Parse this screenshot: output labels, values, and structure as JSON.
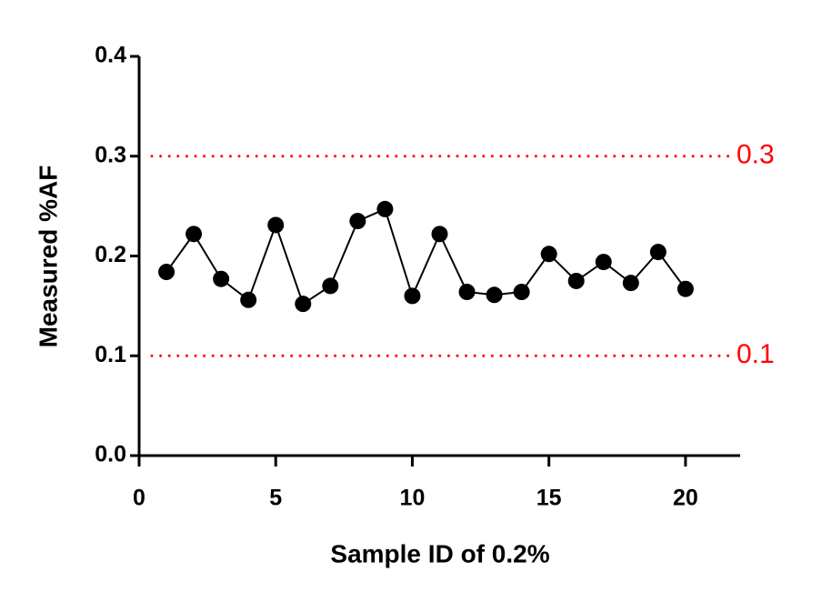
{
  "chart_data": {
    "type": "line",
    "x_label": "Sample ID of 0.2%",
    "y_label": "Measured %AF",
    "x": [
      1,
      2,
      3,
      4,
      5,
      6,
      7,
      8,
      9,
      10,
      11,
      12,
      13,
      14,
      15,
      16,
      17,
      18,
      19,
      20
    ],
    "series": [
      {
        "color": "#000000",
        "values": [
          0.184,
          0.222,
          0.177,
          0.156,
          0.231,
          0.152,
          0.17,
          0.235,
          0.247,
          0.16,
          0.222,
          0.164,
          0.161,
          0.164,
          0.202,
          0.175,
          0.194,
          0.173,
          0.204,
          0.167
        ]
      }
    ],
    "xlim": [
      0,
      22
    ],
    "xticks": [
      0,
      5,
      10,
      15,
      20
    ],
    "ylim": [
      0,
      0.4
    ],
    "yticks": [
      {
        "value": 0,
        "label": "0.0"
      },
      0.1,
      0.2,
      0.3,
      0.4
    ],
    "reference_lines": [
      {
        "value": 0.3,
        "color": "#ff0000"
      },
      {
        "value": 0.1,
        "color": "#ff0000"
      }
    ]
  }
}
